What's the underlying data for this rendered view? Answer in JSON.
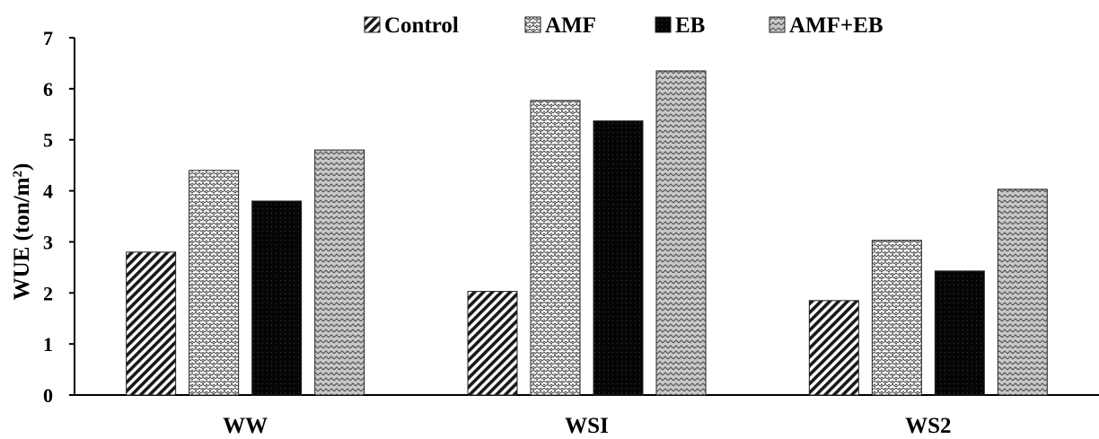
{
  "chart_data": {
    "type": "bar",
    "title": "",
    "xlabel": "",
    "ylabel": "WUE (ton/m",
    "ylabel_sup": "2",
    "ylabel_suffix": ")",
    "ylim": [
      0,
      7
    ],
    "yticks": [
      0,
      1,
      2,
      3,
      4,
      5,
      6,
      7
    ],
    "grid": false,
    "legend_position": "top",
    "categories": [
      "WW",
      "WSI",
      "WS2"
    ],
    "series": [
      {
        "name": "Control",
        "pattern": "diagonal-hatch",
        "values": [
          2.8,
          2.03,
          1.85
        ]
      },
      {
        "name": "AMF",
        "pattern": "wave-dots",
        "values": [
          4.4,
          5.77,
          3.03
        ]
      },
      {
        "name": "EB",
        "pattern": "solid-dark",
        "values": [
          3.8,
          5.37,
          2.43
        ]
      },
      {
        "name": "AMF+EB",
        "pattern": "zigzag",
        "values": [
          4.8,
          6.35,
          4.03
        ]
      }
    ]
  }
}
